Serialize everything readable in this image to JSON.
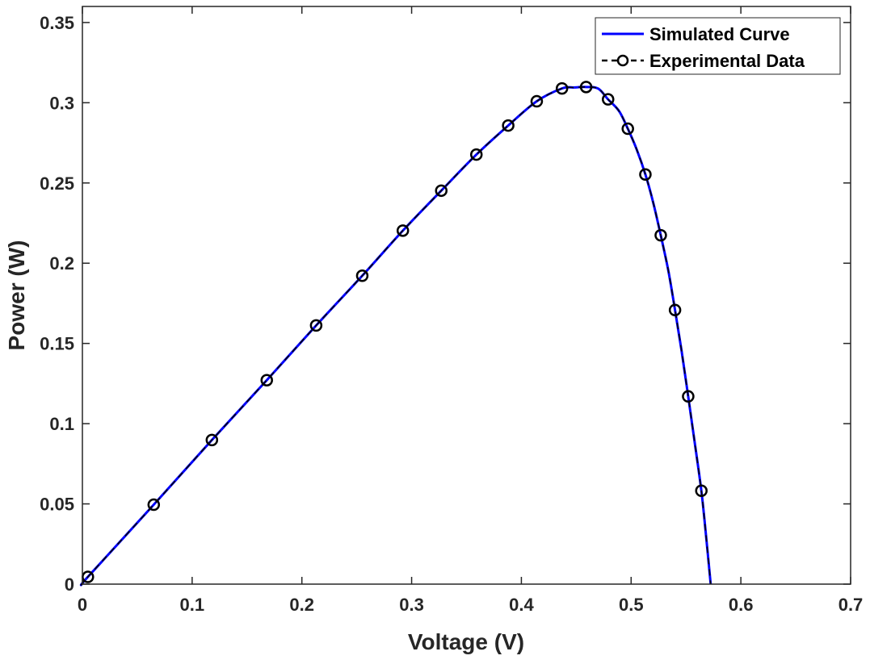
{
  "chart_data": {
    "type": "line",
    "title": "",
    "xlabel": "Voltage (V)",
    "ylabel": "Power (W)",
    "xlim": [
      0,
      0.7
    ],
    "ylim": [
      0,
      0.36
    ],
    "xticks": [
      0,
      0.1,
      0.2,
      0.3,
      0.4,
      0.5,
      0.6,
      0.7
    ],
    "xtick_labels": [
      "0",
      "0.1",
      "0.2",
      "0.3",
      "0.4",
      "0.5",
      "0.6",
      "0.7"
    ],
    "yticks": [
      0,
      0.05,
      0.1,
      0.15,
      0.2,
      0.25,
      0.3,
      0.35
    ],
    "ytick_labels": [
      "0",
      "0.05",
      "0.1",
      "0.15",
      "0.2",
      "0.25",
      "0.3",
      "0.35"
    ],
    "grid": false,
    "legend_position": "top-right",
    "colors": {
      "simulated": "#0000ff",
      "experimental": "#000000",
      "axes": "#262626"
    },
    "series": [
      {
        "name": "Simulated Curve",
        "style": "solid",
        "x": [
          0,
          0.005,
          0.065,
          0.118,
          0.168,
          0.213,
          0.255,
          0.292,
          0.327,
          0.359,
          0.388,
          0.414,
          0.437,
          0.448,
          0.459,
          0.47,
          0.479,
          0.489,
          0.497,
          0.505,
          0.513,
          0.52,
          0.527,
          0.534,
          0.54,
          0.546,
          0.552,
          0.558,
          0.564,
          0.568,
          0.5725
        ],
        "y": [
          0,
          0.0045,
          0.0495,
          0.0898,
          0.1271,
          0.1612,
          0.1922,
          0.2203,
          0.2452,
          0.2677,
          0.2858,
          0.3009,
          0.3089,
          0.3095,
          0.3098,
          0.3088,
          0.3021,
          0.2948,
          0.2838,
          0.271,
          0.2553,
          0.2381,
          0.2174,
          0.195,
          0.1708,
          0.1453,
          0.117,
          0.088,
          0.0582,
          0.032,
          0
        ]
      },
      {
        "name": "Experimental Data",
        "style": "dashed-circles",
        "x": [
          0.005,
          0.065,
          0.118,
          0.168,
          0.213,
          0.255,
          0.292,
          0.327,
          0.359,
          0.388,
          0.414,
          0.437,
          0.459,
          0.479,
          0.497,
          0.513,
          0.527,
          0.54,
          0.552,
          0.564
        ],
        "y": [
          0.0045,
          0.0495,
          0.0898,
          0.1271,
          0.1612,
          0.1922,
          0.2203,
          0.2452,
          0.2677,
          0.2858,
          0.3009,
          0.3089,
          0.3098,
          0.3021,
          0.2838,
          0.2553,
          0.2174,
          0.1708,
          0.117,
          0.0582
        ]
      }
    ]
  }
}
